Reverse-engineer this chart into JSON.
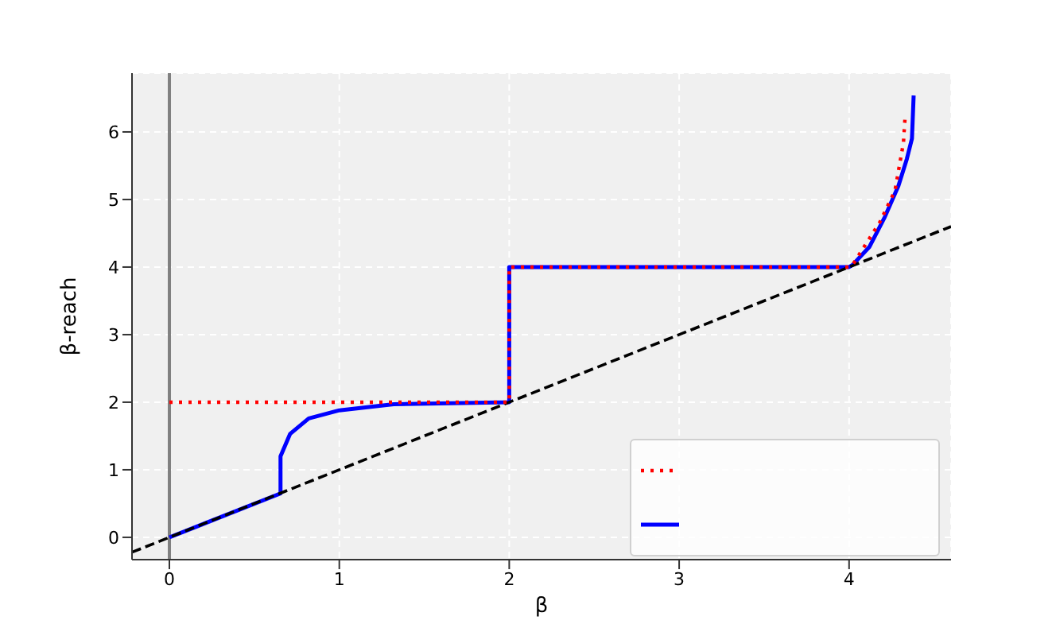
{
  "chart_data": {
    "type": "line",
    "xlabel": "β",
    "ylabel": "β-reach",
    "xlim": [
      -0.22,
      4.6
    ],
    "ylim": [
      -0.33,
      6.87
    ],
    "xticks": [
      0,
      1,
      2,
      3,
      4
    ],
    "yticks": [
      0,
      1,
      2,
      3,
      4,
      5,
      6
    ],
    "grid": true,
    "marker": "none",
    "series": [
      {
        "color": "#ff0000",
        "line_style": "dotted",
        "x": [
          0,
          2,
          2,
          4,
          4.02,
          4.18,
          4.27,
          4.32,
          4.33
        ],
        "values": [
          2,
          2,
          4,
          4,
          4.03,
          4.66,
          5.13,
          5.84,
          6.24
        ]
      },
      {
        "color": "#0000ff",
        "line_style": "solid",
        "x": [
          0,
          0.654,
          0.654,
          0.71,
          0.82,
          1.0,
          1.32,
          2,
          2,
          4,
          4.02,
          4.12,
          4.21,
          4.29,
          4.34,
          4.37,
          4.38
        ],
        "values": [
          0,
          0.65,
          1.2,
          1.53,
          1.76,
          1.88,
          1.97,
          2,
          4,
          4,
          4.03,
          4.3,
          4.74,
          5.2,
          5.6,
          5.9,
          6.54
        ]
      },
      {
        "color": "#000000",
        "line_style": "dashed",
        "x": [
          -0.22,
          4.6
        ],
        "values": [
          -0.22,
          4.6
        ]
      }
    ],
    "ref_lines": [
      {
        "axis": "x",
        "value": 0,
        "color": "#808080"
      }
    ]
  }
}
